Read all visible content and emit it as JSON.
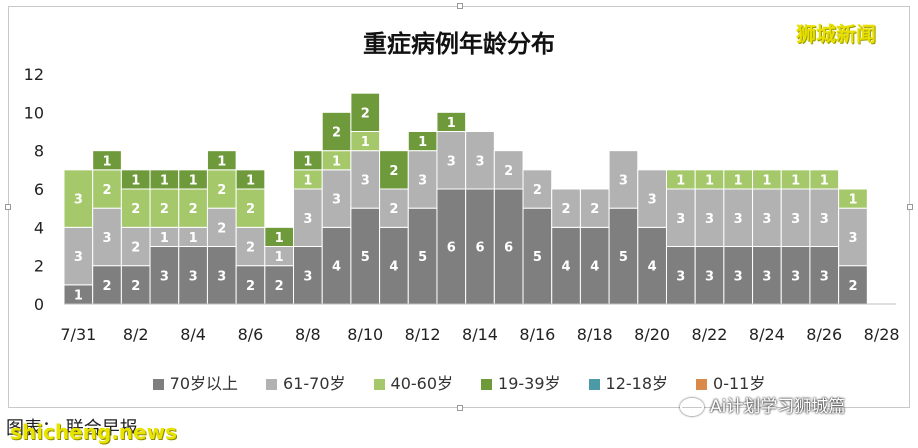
{
  "chart_data": {
    "type": "bar",
    "stacked": true,
    "title": "重症病例年龄分布",
    "ylim": [
      0,
      12
    ],
    "y_ticks": [
      "0",
      "2",
      "4",
      "6",
      "8",
      "10",
      "12"
    ],
    "x_tick_labels": [
      "7/31",
      "8/2",
      "8/4",
      "8/6",
      "8/8",
      "8/10",
      "8/12",
      "8/14",
      "8/16",
      "8/18",
      "8/20",
      "8/22",
      "8/24",
      "8/26",
      "8/28"
    ],
    "categories": [
      "7/31",
      "8/1",
      "8/2",
      "8/3",
      "8/4",
      "8/5",
      "8/6",
      "8/7",
      "8/8",
      "8/9",
      "8/10",
      "8/11",
      "8/12",
      "8/13",
      "8/14",
      "8/15",
      "8/16",
      "8/17",
      "8/18",
      "8/19",
      "8/20",
      "8/21",
      "8/22",
      "8/23",
      "8/24",
      "8/25",
      "8/26",
      "8/27",
      "8/28"
    ],
    "legend_position": "bottom",
    "series": [
      {
        "name": "70岁以上",
        "color": "#7f7f7f",
        "values": [
          1,
          2,
          2,
          3,
          3,
          3,
          2,
          2,
          3,
          4,
          5,
          4,
          5,
          6,
          6,
          6,
          5,
          4,
          4,
          5,
          4,
          3,
          3,
          3,
          3,
          3,
          3,
          2,
          0
        ]
      },
      {
        "name": "61-70岁",
        "color": "#b2b2b2",
        "values": [
          3,
          3,
          2,
          1,
          1,
          2,
          2,
          1,
          3,
          3,
          3,
          2,
          3,
          3,
          3,
          2,
          2,
          2,
          2,
          3,
          3,
          3,
          3,
          3,
          3,
          3,
          3,
          3,
          0
        ]
      },
      {
        "name": "40-60岁",
        "color": "#a4c86a",
        "values": [
          3,
          2,
          2,
          2,
          2,
          2,
          2,
          0,
          1,
          1,
          1,
          0,
          0,
          0,
          0,
          0,
          0,
          0,
          0,
          0,
          0,
          1,
          1,
          1,
          1,
          1,
          1,
          1,
          0
        ]
      },
      {
        "name": "19-39岁",
        "color": "#6f9a3c",
        "values": [
          0,
          1,
          1,
          1,
          1,
          1,
          1,
          1,
          1,
          2,
          2,
          2,
          1,
          1,
          0,
          0,
          0,
          0,
          0,
          0,
          0,
          0,
          0,
          0,
          0,
          0,
          0,
          0,
          0
        ]
      },
      {
        "name": "12-18岁",
        "color": "#4b9aa6",
        "values": [
          0,
          0,
          0,
          0,
          0,
          0,
          0,
          0,
          0,
          0,
          0,
          0,
          0,
          0,
          0,
          0,
          0,
          0,
          0,
          0,
          0,
          0,
          0,
          0,
          0,
          0,
          0,
          0,
          0
        ]
      },
      {
        "name": "0-11岁",
        "color": "#d9894a",
        "values": [
          0,
          0,
          0,
          0,
          0,
          0,
          0,
          0,
          0,
          0,
          0,
          0,
          0,
          0,
          0,
          0,
          0,
          0,
          0,
          0,
          0,
          0,
          0,
          0,
          0,
          0,
          0,
          0,
          0
        ]
      }
    ]
  },
  "watermark": "狮城新闻",
  "caption": "图表：  联合早报",
  "caption_site": "shicheng.news",
  "source_badge": "Ai计划学习狮城篇"
}
